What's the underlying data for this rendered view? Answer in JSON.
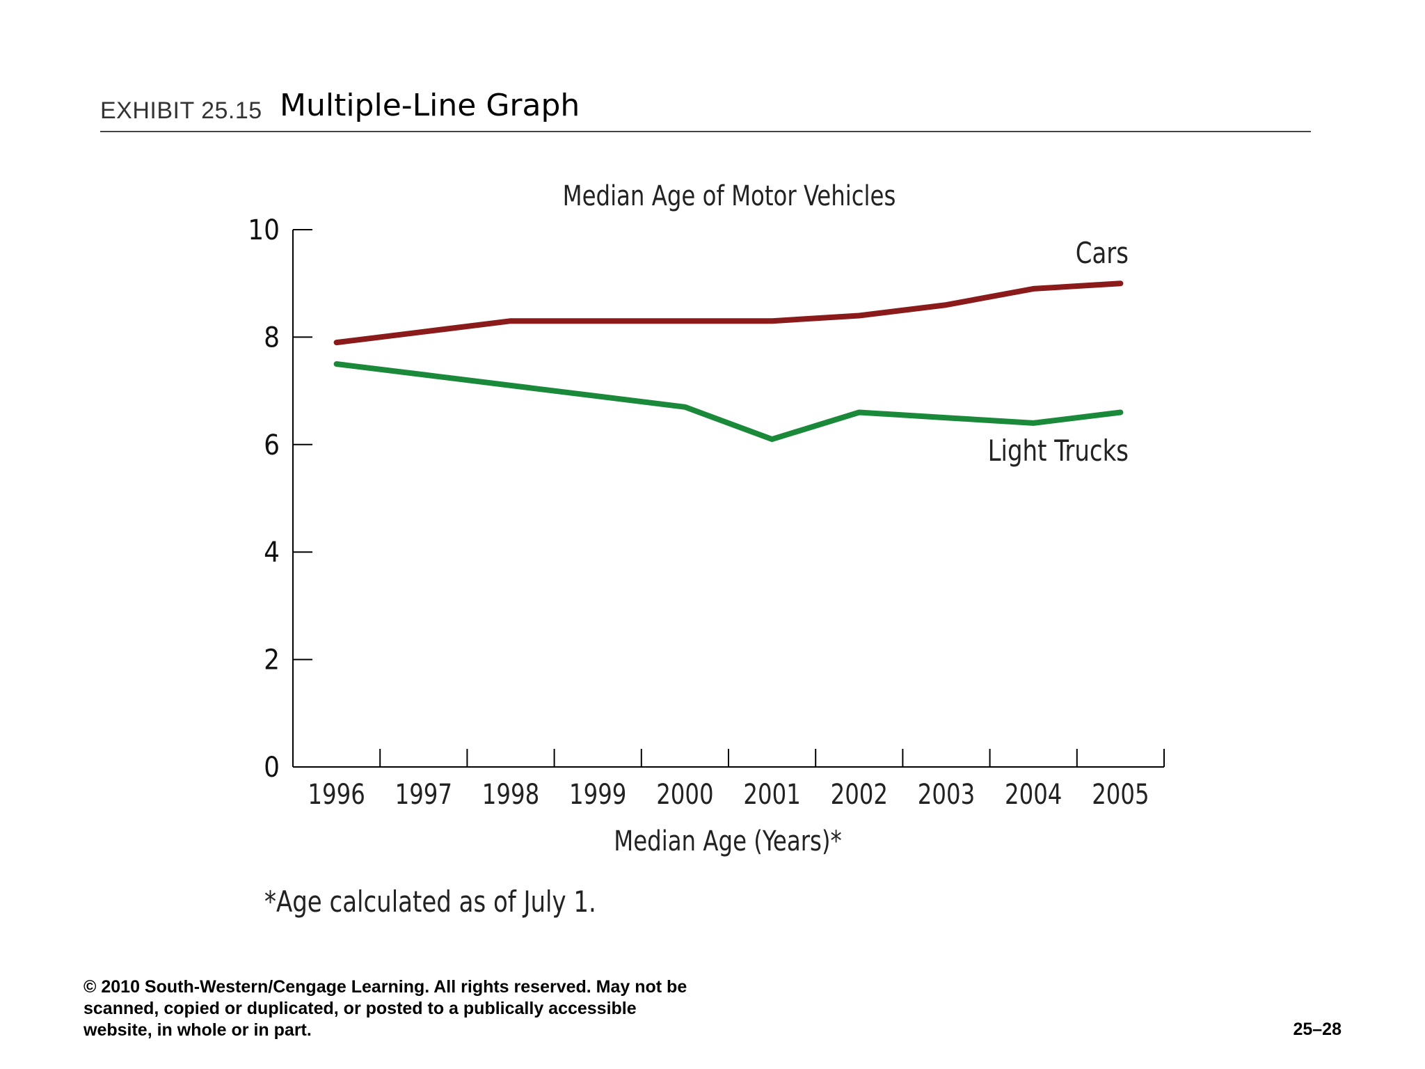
{
  "exhibit": {
    "label": "EXHIBIT 25.15",
    "title": "Multiple-Line Graph"
  },
  "chart_data": {
    "type": "line",
    "title": "Median Age of Motor Vehicles",
    "xlabel": "Median Age (Years)*",
    "ylabel": "",
    "categories": [
      "1996",
      "1997",
      "1998",
      "1999",
      "2000",
      "2001",
      "2002",
      "2003",
      "2004",
      "2005"
    ],
    "ylim": [
      0,
      10
    ],
    "yticks": [
      0,
      2,
      4,
      6,
      8,
      10
    ],
    "grid": false,
    "series": [
      {
        "name": "Cars",
        "color": "#8b1a1a",
        "values": [
          7.9,
          8.1,
          8.3,
          8.3,
          8.3,
          8.3,
          8.4,
          8.6,
          8.9,
          9.0
        ]
      },
      {
        "name": "Light Trucks",
        "color": "#1a8a3a",
        "values": [
          7.5,
          7.3,
          7.1,
          6.9,
          6.7,
          6.1,
          6.6,
          6.5,
          6.4,
          6.6
        ]
      }
    ],
    "footnote": "*Age calculated as of July 1."
  },
  "footer": {
    "copyright_line1": "© 2010 South-Western/Cengage Learning. All rights reserved.  May not be",
    "copyright_line2": "scanned, copied or duplicated, or posted to a publically accessible",
    "copyright_line3": "website, in whole or in part.",
    "page_number": "25–28"
  }
}
